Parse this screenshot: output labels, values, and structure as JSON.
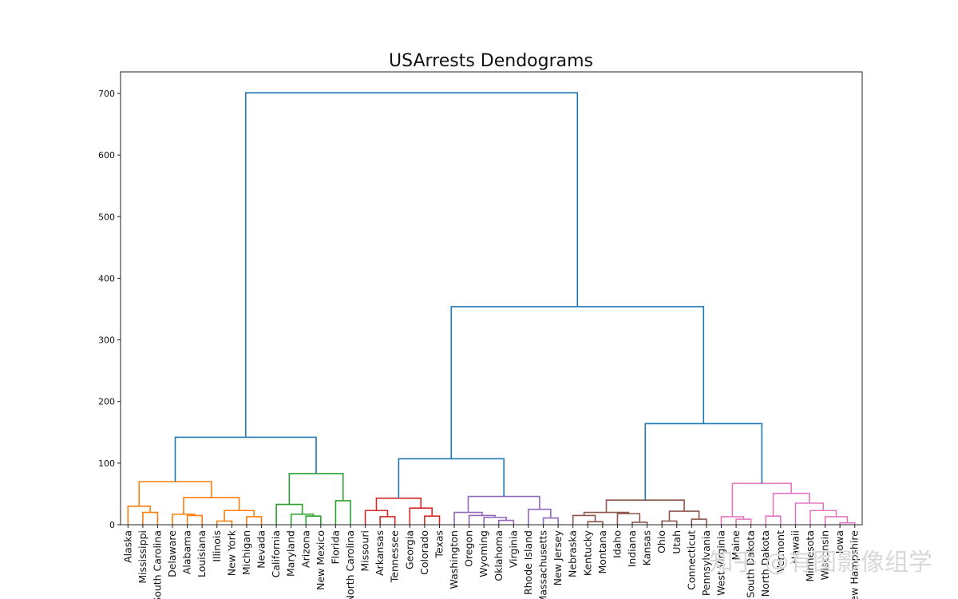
{
  "chart_data": {
    "type": "dendrogram",
    "title": "USArrests Dendograms",
    "ylim": [
      0,
      735
    ],
    "yticks": [
      0,
      100,
      200,
      300,
      400,
      500,
      600,
      700
    ],
    "leaves": [
      "Alaska",
      "Mississippi",
      "South Carolina",
      "Delaware",
      "Alabama",
      "Louisiana",
      "Illinois",
      "New York",
      "Michigan",
      "Nevada",
      "California",
      "Maryland",
      "Arizona",
      "New Mexico",
      "Florida",
      "North Carolina",
      "Missouri",
      "Arkansas",
      "Tennessee",
      "Georgia",
      "Colorado",
      "Texas",
      "Washington",
      "Oregon",
      "Wyoming",
      "Oklahoma",
      "Virginia",
      "Rhode Island",
      "Massachusetts",
      "New Jersey",
      "Nebraska",
      "Kentucky",
      "Montana",
      "Idaho",
      "Indiana",
      "Kansas",
      "Ohio",
      "Utah",
      "Connecticut",
      "Pennsylvania",
      "West Virginia",
      "Maine",
      "South Dakota",
      "North Dakota",
      "Vermont",
      "Hawaii",
      "Minnesota",
      "Wisconsin",
      "Iowa",
      "New Hampshire"
    ],
    "colors": {
      "orange": "#ff7f0e",
      "green": "#2ca02c",
      "red": "#d62728",
      "purple": "#9467bd",
      "brown": "#8c564b",
      "pink": "#e377c2",
      "blue": "#1f77b4"
    },
    "merges": [
      {
        "a": "L1",
        "b": "L2",
        "h": 20,
        "c": "orange"
      },
      {
        "a": "L0",
        "b": "M0",
        "h": 30,
        "c": "orange"
      },
      {
        "a": "L4",
        "b": "L5",
        "h": 15,
        "c": "orange"
      },
      {
        "a": "L3",
        "b": "M2",
        "h": 17,
        "c": "orange"
      },
      {
        "a": "L6",
        "b": "L7",
        "h": 6,
        "c": "orange"
      },
      {
        "a": "L8",
        "b": "L9",
        "h": 13,
        "c": "orange"
      },
      {
        "a": "M4",
        "b": "M5",
        "h": 23,
        "c": "orange"
      },
      {
        "a": "M3",
        "b": "M6",
        "h": 44,
        "c": "orange"
      },
      {
        "a": "M1",
        "b": "M7",
        "h": 70,
        "c": "orange"
      },
      {
        "a": "L12",
        "b": "L13",
        "h": 14,
        "c": "green"
      },
      {
        "a": "L11",
        "b": "M9",
        "h": 17,
        "c": "green"
      },
      {
        "a": "L10",
        "b": "M10",
        "h": 33,
        "c": "green"
      },
      {
        "a": "L14",
        "b": "L15",
        "h": 39,
        "c": "green"
      },
      {
        "a": "M11",
        "b": "M12",
        "h": 83,
        "c": "green"
      },
      {
        "a": "M8",
        "b": "M13",
        "h": 142,
        "c": "blue"
      },
      {
        "a": "L17",
        "b": "L18",
        "h": 13,
        "c": "red"
      },
      {
        "a": "L16",
        "b": "M15",
        "h": 23,
        "c": "red"
      },
      {
        "a": "L20",
        "b": "L21",
        "h": 14,
        "c": "red"
      },
      {
        "a": "L19",
        "b": "M17",
        "h": 27,
        "c": "red"
      },
      {
        "a": "M16",
        "b": "M18",
        "h": 43,
        "c": "red"
      },
      {
        "a": "L25",
        "b": "L26",
        "h": 7,
        "c": "purple"
      },
      {
        "a": "L24",
        "b": "M20",
        "h": 12,
        "c": "purple"
      },
      {
        "a": "L23",
        "b": "M21",
        "h": 15,
        "c": "purple"
      },
      {
        "a": "L22",
        "b": "M22",
        "h": 20,
        "c": "purple"
      },
      {
        "a": "L28",
        "b": "L29",
        "h": 11,
        "c": "purple"
      },
      {
        "a": "L27",
        "b": "M24",
        "h": 25,
        "c": "purple"
      },
      {
        "a": "M23",
        "b": "M25",
        "h": 46,
        "c": "purple"
      },
      {
        "a": "M19",
        "b": "M26",
        "h": 107,
        "c": "blue"
      },
      {
        "a": "L31",
        "b": "L32",
        "h": 5,
        "c": "brown"
      },
      {
        "a": "L30",
        "b": "M28",
        "h": 15,
        "c": "brown"
      },
      {
        "a": "L34",
        "b": "L35",
        "h": 4,
        "c": "brown"
      },
      {
        "a": "L33",
        "b": "M30",
        "h": 18,
        "c": "brown"
      },
      {
        "a": "M29",
        "b": "M31",
        "h": 20,
        "c": "brown"
      },
      {
        "a": "L36",
        "b": "L37",
        "h": 6,
        "c": "brown"
      },
      {
        "a": "L38",
        "b": "L39",
        "h": 9,
        "c": "brown"
      },
      {
        "a": "M33",
        "b": "M34",
        "h": 22,
        "c": "brown"
      },
      {
        "a": "M32",
        "b": "M35",
        "h": 40,
        "c": "brown"
      },
      {
        "a": "L41",
        "b": "L42",
        "h": 9,
        "c": "pink"
      },
      {
        "a": "L40",
        "b": "M37",
        "h": 13,
        "c": "pink"
      },
      {
        "a": "L43",
        "b": "L44",
        "h": 14,
        "c": "pink"
      },
      {
        "a": "L48",
        "b": "L49",
        "h": 3,
        "c": "pink"
      },
      {
        "a": "L47",
        "b": "M40",
        "h": 13,
        "c": "pink"
      },
      {
        "a": "L46",
        "b": "M41",
        "h": 23,
        "c": "pink"
      },
      {
        "a": "L45",
        "b": "M42",
        "h": 35,
        "c": "pink"
      },
      {
        "a": "M39",
        "b": "M43",
        "h": 51,
        "c": "pink"
      },
      {
        "a": "M38",
        "b": "M44",
        "h": 67,
        "c": "pink"
      },
      {
        "a": "M36",
        "b": "M45",
        "h": 164,
        "c": "blue"
      },
      {
        "a": "M27",
        "b": "M46",
        "h": 354,
        "c": "blue"
      },
      {
        "a": "M14",
        "b": "M47",
        "h": 701,
        "c": "blue"
      }
    ]
  },
  "watermark": "知乎 @有图影像组学"
}
